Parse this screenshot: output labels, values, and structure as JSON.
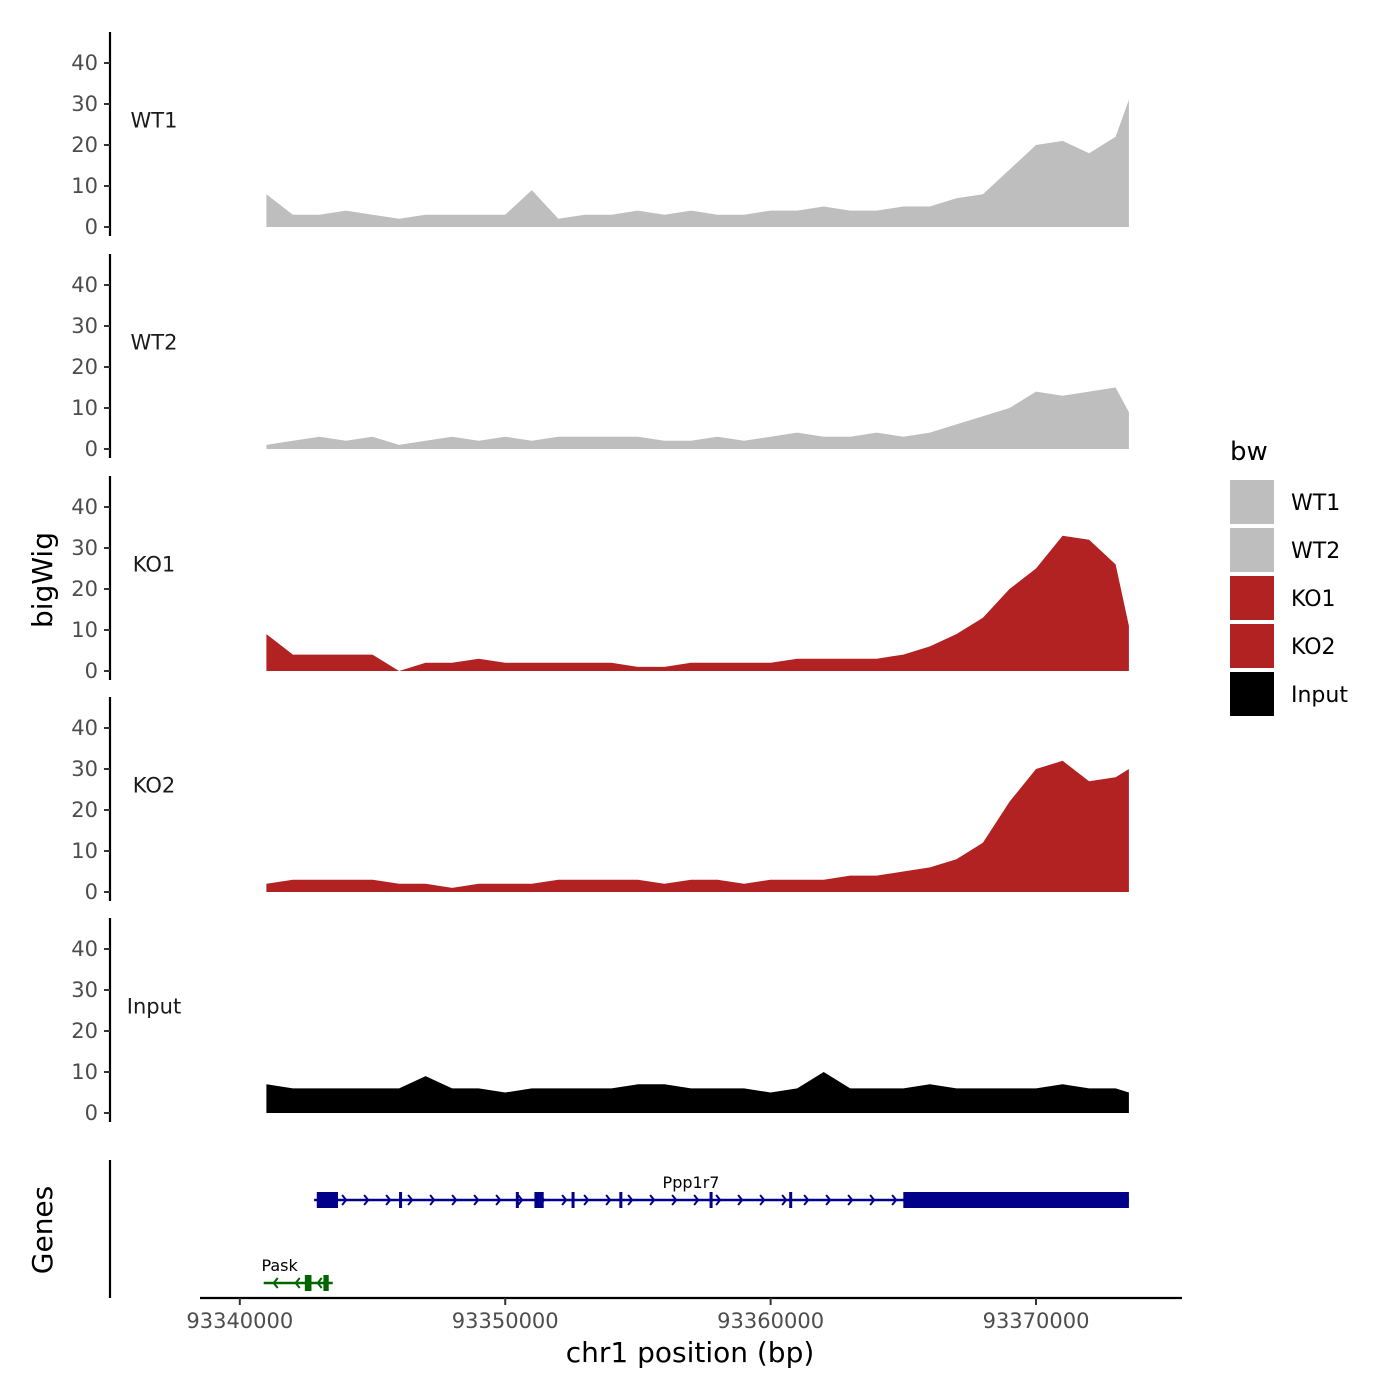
{
  "chart_data": {
    "type": "area",
    "title": "",
    "xlabel": "chr1 position (bp)",
    "ylabel": "bigWig",
    "genes_ylabel": "Genes",
    "xlim": [
      93338500,
      93375500
    ],
    "ylim": [
      0,
      47
    ],
    "x_ticks": [
      93340000,
      93350000,
      93360000,
      93370000
    ],
    "x_tick_labels": [
      "93340000",
      "93350000",
      "93360000",
      "93370000"
    ],
    "y_ticks": [
      0,
      10,
      20,
      30,
      40
    ],
    "y_tick_labels": [
      "0",
      "10",
      "20",
      "30",
      "40"
    ],
    "legend": {
      "title": "bw",
      "position": "right",
      "entries": [
        {
          "label": "WT1",
          "color": "#bebebe"
        },
        {
          "label": "WT2",
          "color": "#bebebe"
        },
        {
          "label": "KO1",
          "color": "#b22222"
        },
        {
          "label": "KO2",
          "color": "#b22222"
        },
        {
          "label": "Input",
          "color": "#000000"
        }
      ]
    },
    "track_x": [
      93341000,
      93342000,
      93343000,
      93344000,
      93345000,
      93346000,
      93347000,
      93348000,
      93349000,
      93350000,
      93351000,
      93352000,
      93353000,
      93354000,
      93355000,
      93356000,
      93357000,
      93358000,
      93359000,
      93360000,
      93361000,
      93362000,
      93363000,
      93364000,
      93365000,
      93366000,
      93367000,
      93368000,
      93369000,
      93370000,
      93371000,
      93372000,
      93373000,
      93373500
    ],
    "series": [
      {
        "name": "WT1",
        "color": "#bebebe",
        "values": [
          8,
          3,
          3,
          4,
          3,
          2,
          3,
          3,
          3,
          3,
          9,
          2,
          3,
          3,
          4,
          3,
          4,
          3,
          3,
          4,
          4,
          5,
          4,
          4,
          5,
          5,
          7,
          8,
          14,
          20,
          21,
          18,
          22,
          31
        ]
      },
      {
        "name": "WT2",
        "color": "#bebebe",
        "values": [
          1,
          2,
          3,
          2,
          3,
          1,
          2,
          3,
          2,
          3,
          2,
          3,
          3,
          3,
          3,
          2,
          2,
          3,
          2,
          3,
          4,
          3,
          3,
          4,
          3,
          4,
          6,
          8,
          10,
          14,
          13,
          14,
          15,
          9
        ]
      },
      {
        "name": "KO1",
        "color": "#b22222",
        "values": [
          9,
          4,
          4,
          4,
          4,
          0,
          2,
          2,
          3,
          2,
          2,
          2,
          2,
          2,
          1,
          1,
          2,
          2,
          2,
          2,
          3,
          3,
          3,
          3,
          4,
          6,
          9,
          13,
          20,
          25,
          33,
          32,
          26,
          11
        ]
      },
      {
        "name": "KO2",
        "color": "#b22222",
        "values": [
          2,
          3,
          3,
          3,
          3,
          2,
          2,
          1,
          2,
          2,
          2,
          3,
          3,
          3,
          3,
          2,
          3,
          3,
          2,
          3,
          3,
          3,
          4,
          4,
          5,
          6,
          8,
          12,
          22,
          30,
          32,
          27,
          28,
          30
        ]
      },
      {
        "name": "Input",
        "color": "#000000",
        "values": [
          7,
          6,
          6,
          6,
          6,
          6,
          9,
          6,
          6,
          5,
          6,
          6,
          6,
          6,
          7,
          7,
          6,
          6,
          6,
          5,
          6,
          10,
          6,
          6,
          6,
          7,
          6,
          6,
          6,
          6,
          7,
          6,
          6,
          5
        ]
      }
    ],
    "genes": [
      {
        "name": "Ppp1r7",
        "strand": "+",
        "color": "#00008b",
        "start": 93342800,
        "end": 93373500,
        "exons": [
          [
            93342900,
            93343700
          ],
          [
            93346000,
            93346100
          ],
          [
            93350400,
            93350500
          ],
          [
            93351100,
            93351450
          ],
          [
            93352500,
            93352600
          ],
          [
            93354300,
            93354400
          ],
          [
            93357700,
            93357800
          ],
          [
            93360700,
            93360800
          ],
          [
            93365000,
            93373500
          ]
        ]
      },
      {
        "name": "Pask",
        "strand": "-",
        "color": "#006400",
        "start": 93340900,
        "end": 93343500,
        "exons": [
          [
            93342450,
            93342700
          ],
          [
            93343150,
            93343350
          ]
        ]
      }
    ]
  }
}
